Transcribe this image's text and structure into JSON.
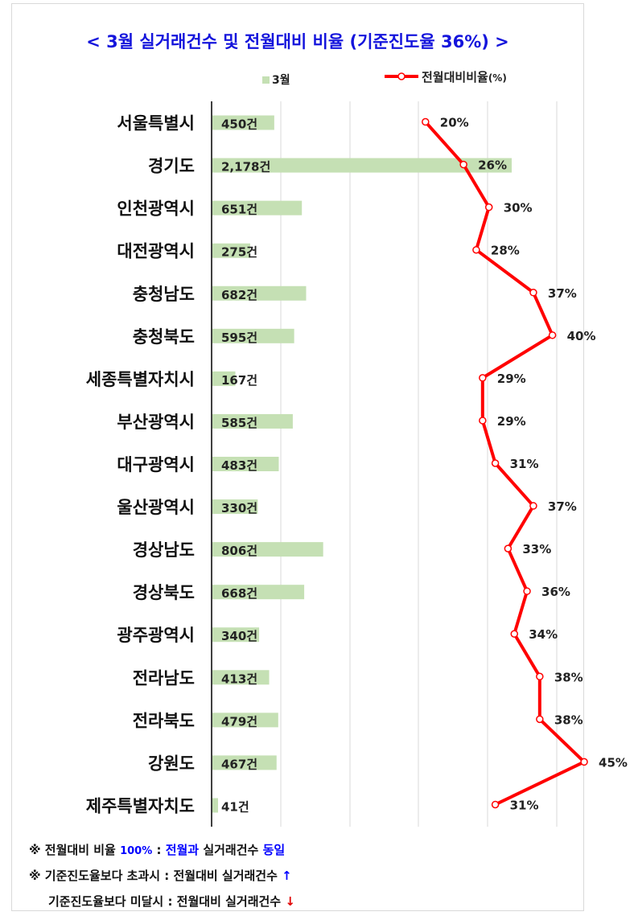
{
  "title": "< 3월 실거래건수 및 전월대비 비율 (기준진도율 36%) >",
  "chart_data": {
    "type": "bar",
    "categories": [
      "서울특별시",
      "경기도",
      "인천광역시",
      "대전광역시",
      "충청남도",
      "충청북도",
      "세종특별자치시",
      "부산광역시",
      "대구광역시",
      "울산광역시",
      "경상남도",
      "경상북도",
      "광주광역시",
      "전라남도",
      "전라북도",
      "강원도",
      "제주특별자치도"
    ],
    "series": [
      {
        "name": "3월",
        "type": "bar",
        "values": [
          450,
          2178,
          651,
          275,
          682,
          595,
          167,
          585,
          483,
          330,
          806,
          668,
          340,
          413,
          479,
          467,
          41
        ],
        "labels": [
          "450건",
          "2,178건",
          "651건",
          "275건",
          "682건",
          "595건",
          "167건",
          "585건",
          "483건",
          "330건",
          "806건",
          "668건",
          "340건",
          "413건",
          "479건",
          "467건",
          "41건"
        ],
        "color": "#c5e0b4"
      },
      {
        "name": "전월대비비율(%)",
        "type": "line",
        "values": [
          20,
          26,
          30,
          28,
          37,
          40,
          29,
          29,
          31,
          37,
          33,
          36,
          34,
          38,
          38,
          45,
          31
        ],
        "labels": [
          "20%",
          "26%",
          "30%",
          "28%",
          "37%",
          "40%",
          "29%",
          "29%",
          "31%",
          "37%",
          "33%",
          "36%",
          "34%",
          "38%",
          "38%",
          "45%",
          "31%"
        ],
        "color": "#ff0000"
      }
    ],
    "legend": {
      "bar_label": "3월",
      "line_label": "전월대비비율",
      "line_unit": "(%)"
    },
    "grid": true,
    "legend_position": "top"
  },
  "notes": {
    "line1": {
      "prefix": "※ 전월대비 비율 ",
      "pct": "100%",
      "sep": " : ",
      "word1": "전월",
      "word2": "과 ",
      "word3": "실거래건수 ",
      "word4": "동일"
    },
    "line2": {
      "text": "※ 기준진도율보다 초과시 : 전월대비 실거래건수 ",
      "arrow": "↑"
    },
    "line3": {
      "text": "기준진도율보다 미달시 : 전월대비 실거래건수 ",
      "arrow": "↓"
    }
  }
}
